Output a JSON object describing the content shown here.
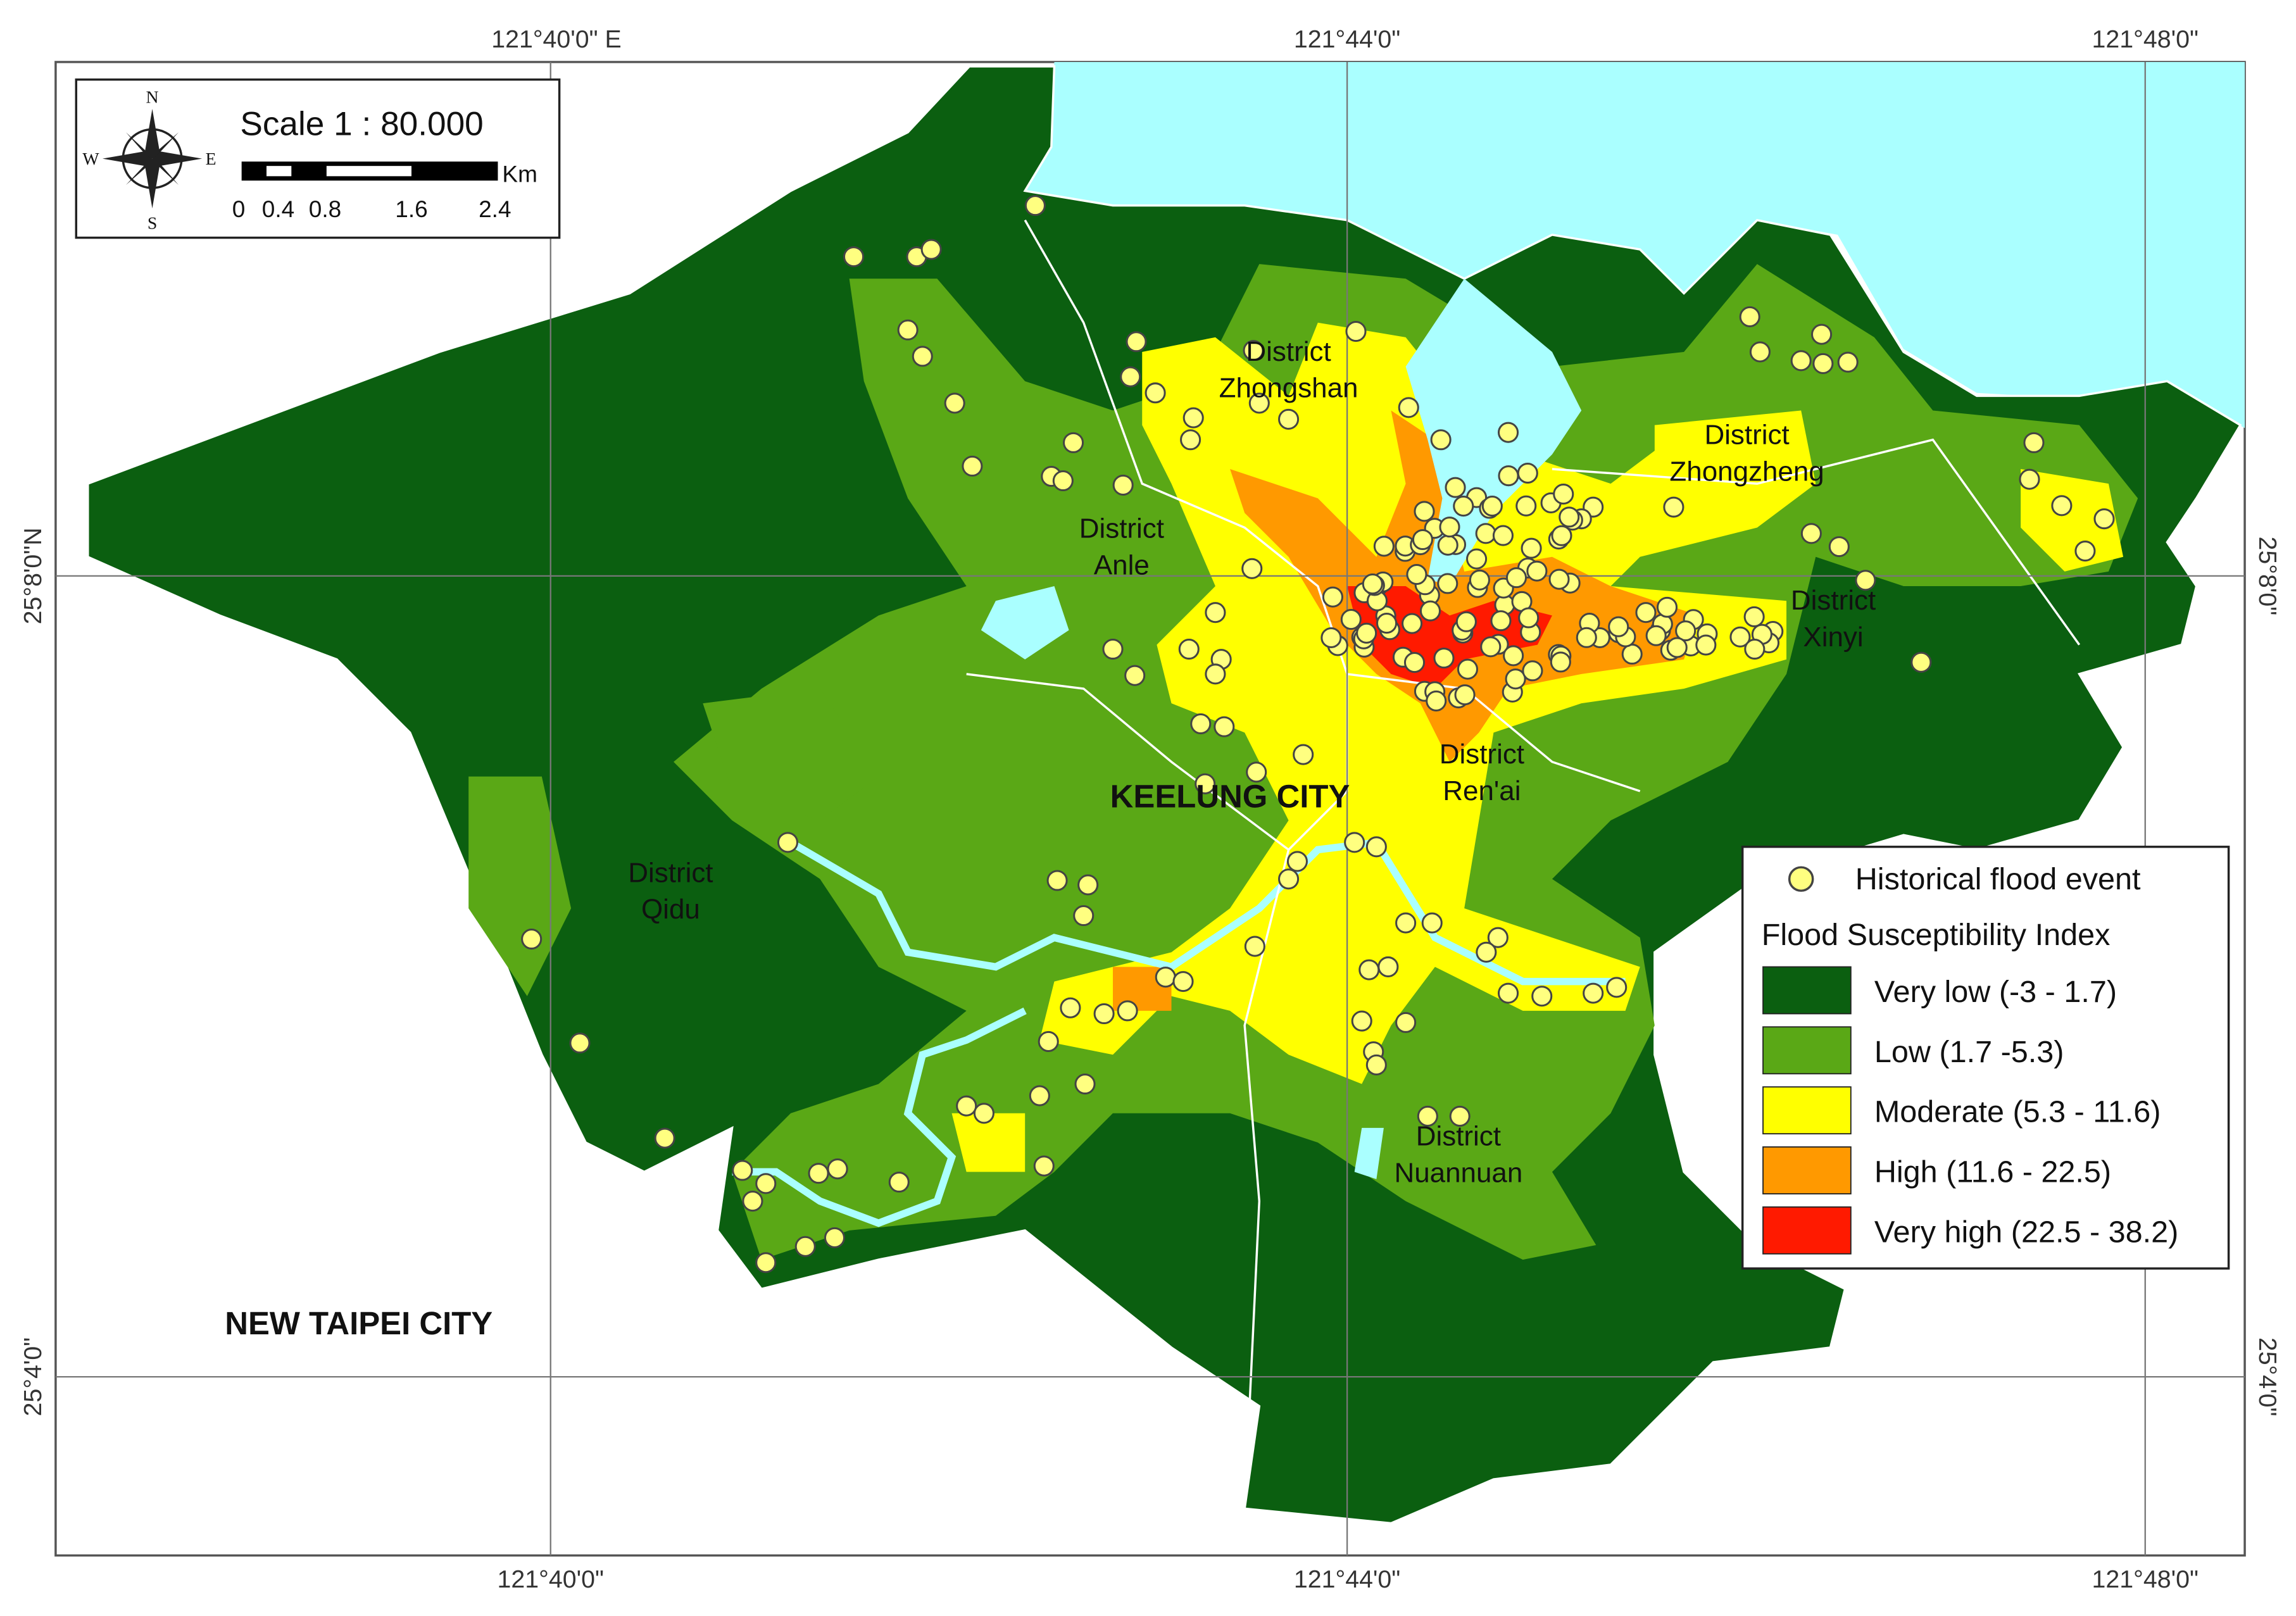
{
  "map": {
    "scale": "Scale 1 : 80.000",
    "scale_bar": {
      "unit": "Km",
      "labels": [
        "0",
        "0.4",
        "0.8",
        "1.6",
        "2.4"
      ]
    },
    "compass": {
      "n": "N",
      "s": "S",
      "e": "E",
      "w": "W"
    },
    "graticule": {
      "top": [
        "121°40'0\" E",
        "121°44'0\"",
        "121°48'0\""
      ],
      "bottom": [
        "121°40'0\"",
        "121°44'0\"",
        "121°48'0\""
      ],
      "left": [
        "25°8'0\"N",
        "25°4'0\""
      ],
      "right": [
        "25°8'0\"",
        "25°4'0\""
      ]
    },
    "places": [
      {
        "lines": [
          "District",
          "Zhongshan"
        ]
      },
      {
        "lines": [
          "District",
          "Zhongzheng"
        ]
      },
      {
        "lines": [
          "District",
          "Anle"
        ]
      },
      {
        "lines": [
          "District",
          "Xinyi"
        ]
      },
      {
        "lines": [
          "District",
          "Ren'ai"
        ]
      },
      {
        "lines": [
          "District",
          "Qidu"
        ]
      },
      {
        "lines": [
          "District",
          "Nuannuan"
        ]
      }
    ],
    "regions": [
      "KEELUNG CITY",
      "NEW TAIPEI CITY"
    ],
    "legend": {
      "point": "Historical flood event",
      "title": "Flood Susceptibility Index",
      "classes": [
        {
          "label": "Very low (-3 - 1.7)",
          "color": "#0b5f10"
        },
        {
          "label": "Low (1.7 -5.3)",
          "color": "#5aa816"
        },
        {
          "label": "Moderate (5.3 - 11.6)",
          "color": "#ffff00"
        },
        {
          "label": "High (11.6 - 22.5)",
          "color": "#ff9900"
        },
        {
          "label": "Very high (22.5 - 38.2)",
          "color": "#ff1a00"
        }
      ]
    }
  }
}
